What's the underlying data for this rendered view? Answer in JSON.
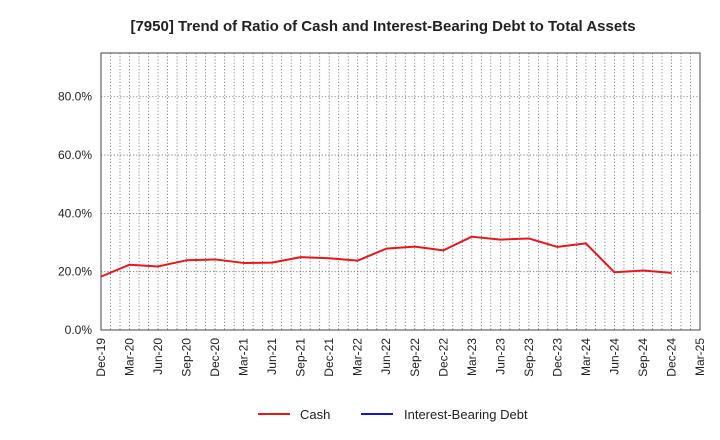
{
  "chart_data": {
    "type": "line",
    "title": "[7950]  Trend of Ratio of Cash and Interest-Bearing Debt to Total Assets",
    "xlabel": "",
    "ylabel": "",
    "ylim": [
      0,
      95
    ],
    "yticks": [
      {
        "value": 0,
        "label": "0.0%"
      },
      {
        "value": 20,
        "label": "20.0%"
      },
      {
        "value": 40,
        "label": "40.0%"
      },
      {
        "value": 60,
        "label": "60.0%"
      },
      {
        "value": 80,
        "label": "80.0%"
      }
    ],
    "categories": [
      "Dec-19",
      "Mar-20",
      "Jun-20",
      "Sep-20",
      "Dec-20",
      "Mar-21",
      "Jun-21",
      "Sep-21",
      "Dec-21",
      "Mar-22",
      "Jun-22",
      "Sep-22",
      "Dec-22",
      "Mar-23",
      "Jun-23",
      "Sep-23",
      "Dec-23",
      "Mar-24",
      "Jun-24",
      "Sep-24",
      "Dec-24",
      "Mar-25"
    ],
    "grid": true,
    "legend_position": "bottom-center",
    "series": [
      {
        "name": "Cash",
        "color": "#e8161b",
        "values": [
          18.3,
          22.4,
          21.8,
          23.9,
          24.2,
          23.0,
          23.1,
          25.0,
          24.6,
          23.8,
          27.9,
          28.6,
          27.3,
          32.0,
          31.0,
          31.4,
          28.5,
          29.7,
          19.8,
          20.4,
          19.6,
          null
        ]
      },
      {
        "name": "Interest-Bearing Debt",
        "color": "#1414d2",
        "values": [
          null,
          null,
          null,
          null,
          null,
          null,
          null,
          null,
          null,
          null,
          null,
          null,
          null,
          null,
          null,
          null,
          null,
          null,
          null,
          null,
          null,
          null
        ]
      }
    ]
  }
}
